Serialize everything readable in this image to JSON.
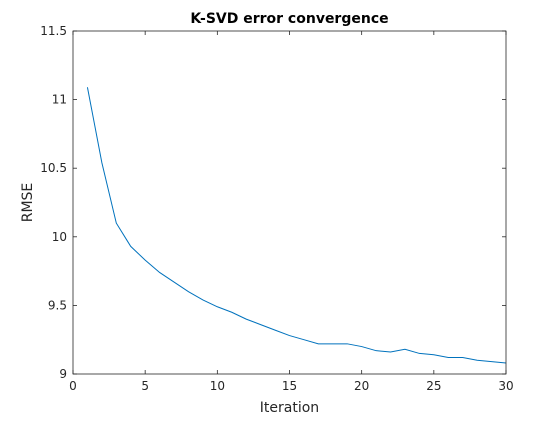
{
  "chart_data": {
    "type": "line",
    "title": "K-SVD error convergence",
    "xlabel": "Iteration",
    "ylabel": "RMSE",
    "xlim": [
      0,
      30
    ],
    "ylim": [
      9,
      11.5
    ],
    "xticks": [
      0,
      5,
      10,
      15,
      20,
      25,
      30
    ],
    "yticks": [
      9,
      9.5,
      10,
      10.5,
      11,
      11.5
    ],
    "xtick_labels": [
      "0",
      "5",
      "10",
      "15",
      "20",
      "25",
      "30"
    ],
    "ytick_labels": [
      "9",
      "9.5",
      "10",
      "10.5",
      "11",
      "11.5"
    ],
    "grid": false,
    "line_color": "#0072BD",
    "series": [
      {
        "x": [
          1,
          2,
          3,
          4,
          5,
          6,
          7,
          8,
          9,
          10,
          11,
          12,
          13,
          14,
          15,
          16,
          17,
          18,
          19,
          20,
          21,
          22,
          23,
          24,
          25,
          26,
          27,
          28,
          29,
          30
        ],
        "values": [
          11.09,
          10.54,
          10.1,
          9.93,
          9.83,
          9.74,
          9.67,
          9.6,
          9.54,
          9.49,
          9.45,
          9.4,
          9.36,
          9.32,
          9.28,
          9.25,
          9.22,
          9.22,
          9.22,
          9.2,
          9.17,
          9.16,
          9.18,
          9.15,
          9.14,
          9.12,
          9.12,
          9.1,
          9.09,
          9.08
        ]
      }
    ]
  }
}
